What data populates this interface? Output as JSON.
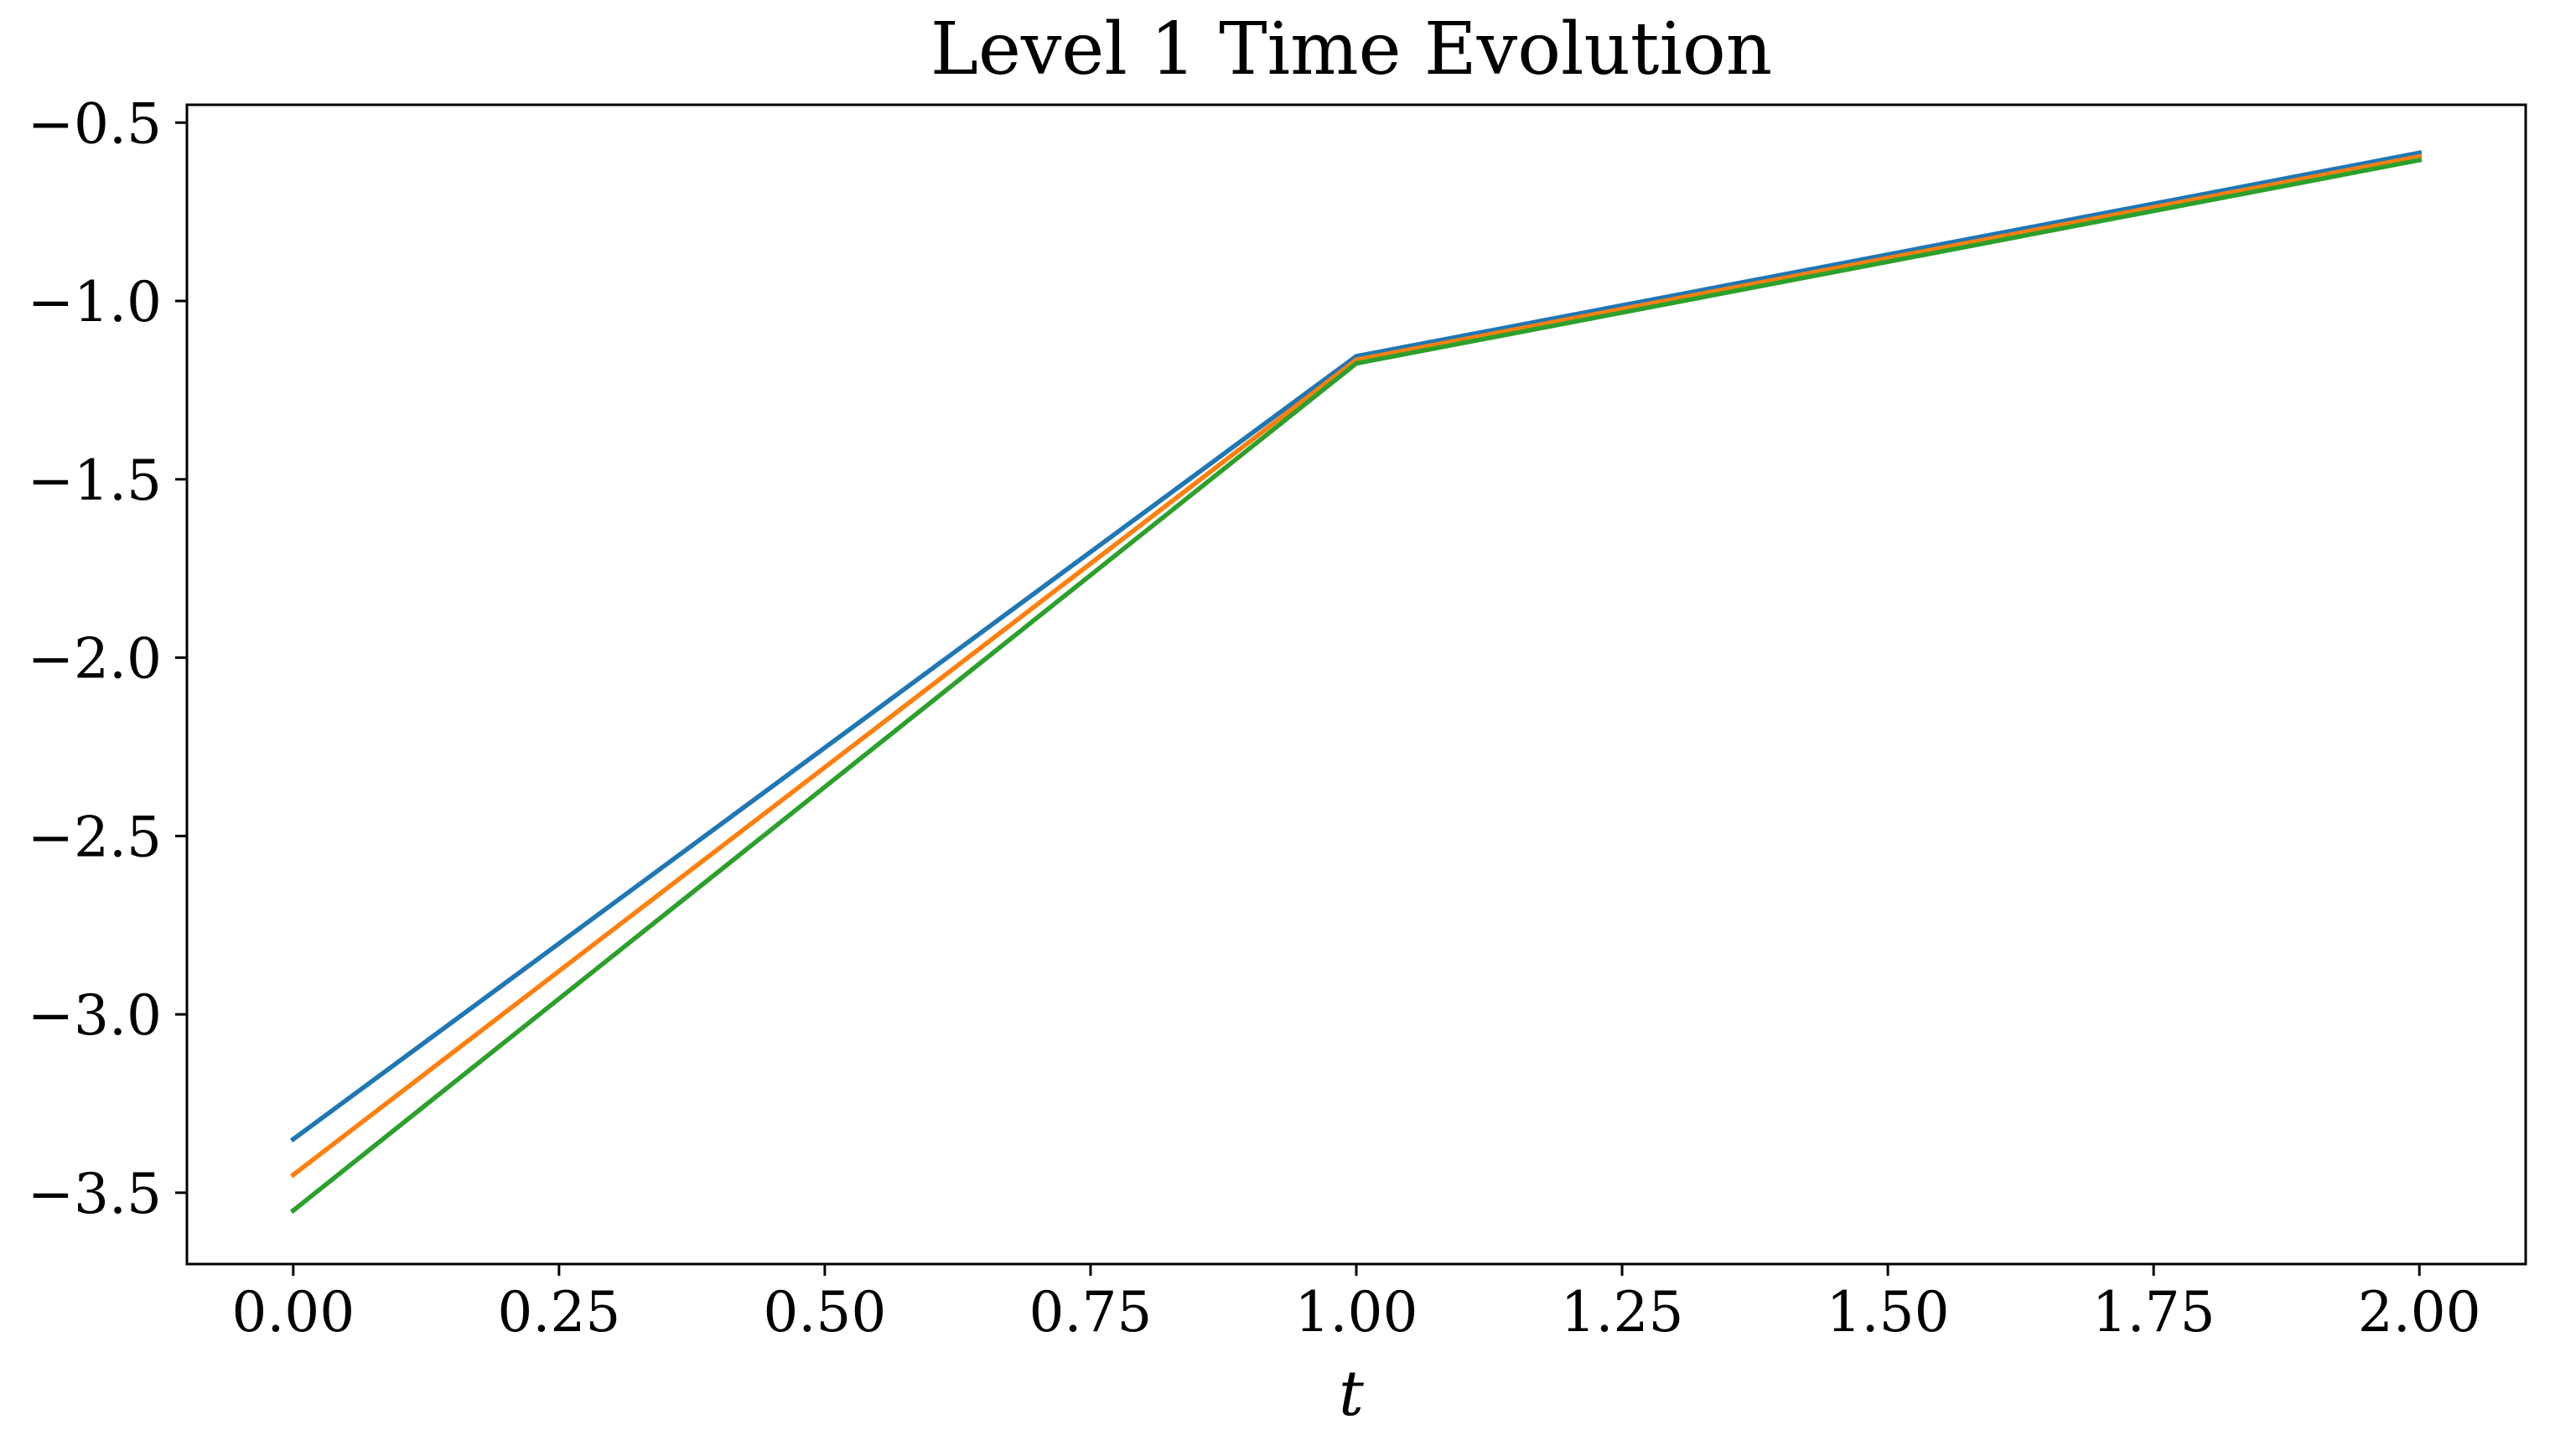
{
  "chart_data": {
    "type": "line",
    "title": "Level 1 Time Evolution",
    "xlabel": "t",
    "ylabel": "",
    "xlim": [
      -0.1,
      2.1
    ],
    "ylim": [
      -3.7,
      -0.45
    ],
    "x_ticks": [
      0.0,
      0.25,
      0.5,
      0.75,
      1.0,
      1.25,
      1.5,
      1.75,
      2.0
    ],
    "x_tick_labels": [
      "0.00",
      "0.25",
      "0.50",
      "0.75",
      "1.00",
      "1.25",
      "1.50",
      "1.75",
      "2.00"
    ],
    "y_ticks": [
      -0.5,
      -1.0,
      -1.5,
      -2.0,
      -2.5,
      -3.0,
      -3.5
    ],
    "y_tick_labels": [
      "−0.5",
      "−1.0",
      "−1.5",
      "−2.0",
      "−2.5",
      "−3.0",
      "−3.5"
    ],
    "grid": false,
    "legend": "none",
    "x": [
      0.0,
      1.0,
      2.0
    ],
    "series": [
      {
        "values": [
          -3.35,
          -1.155,
          -0.585
        ],
        "color": "#1f77b4"
      },
      {
        "values": [
          -3.45,
          -1.165,
          -0.595
        ],
        "color": "#ff7f0e"
      },
      {
        "values": [
          -3.55,
          -1.175,
          -0.605
        ],
        "color": "#2ca02c"
      }
    ]
  }
}
